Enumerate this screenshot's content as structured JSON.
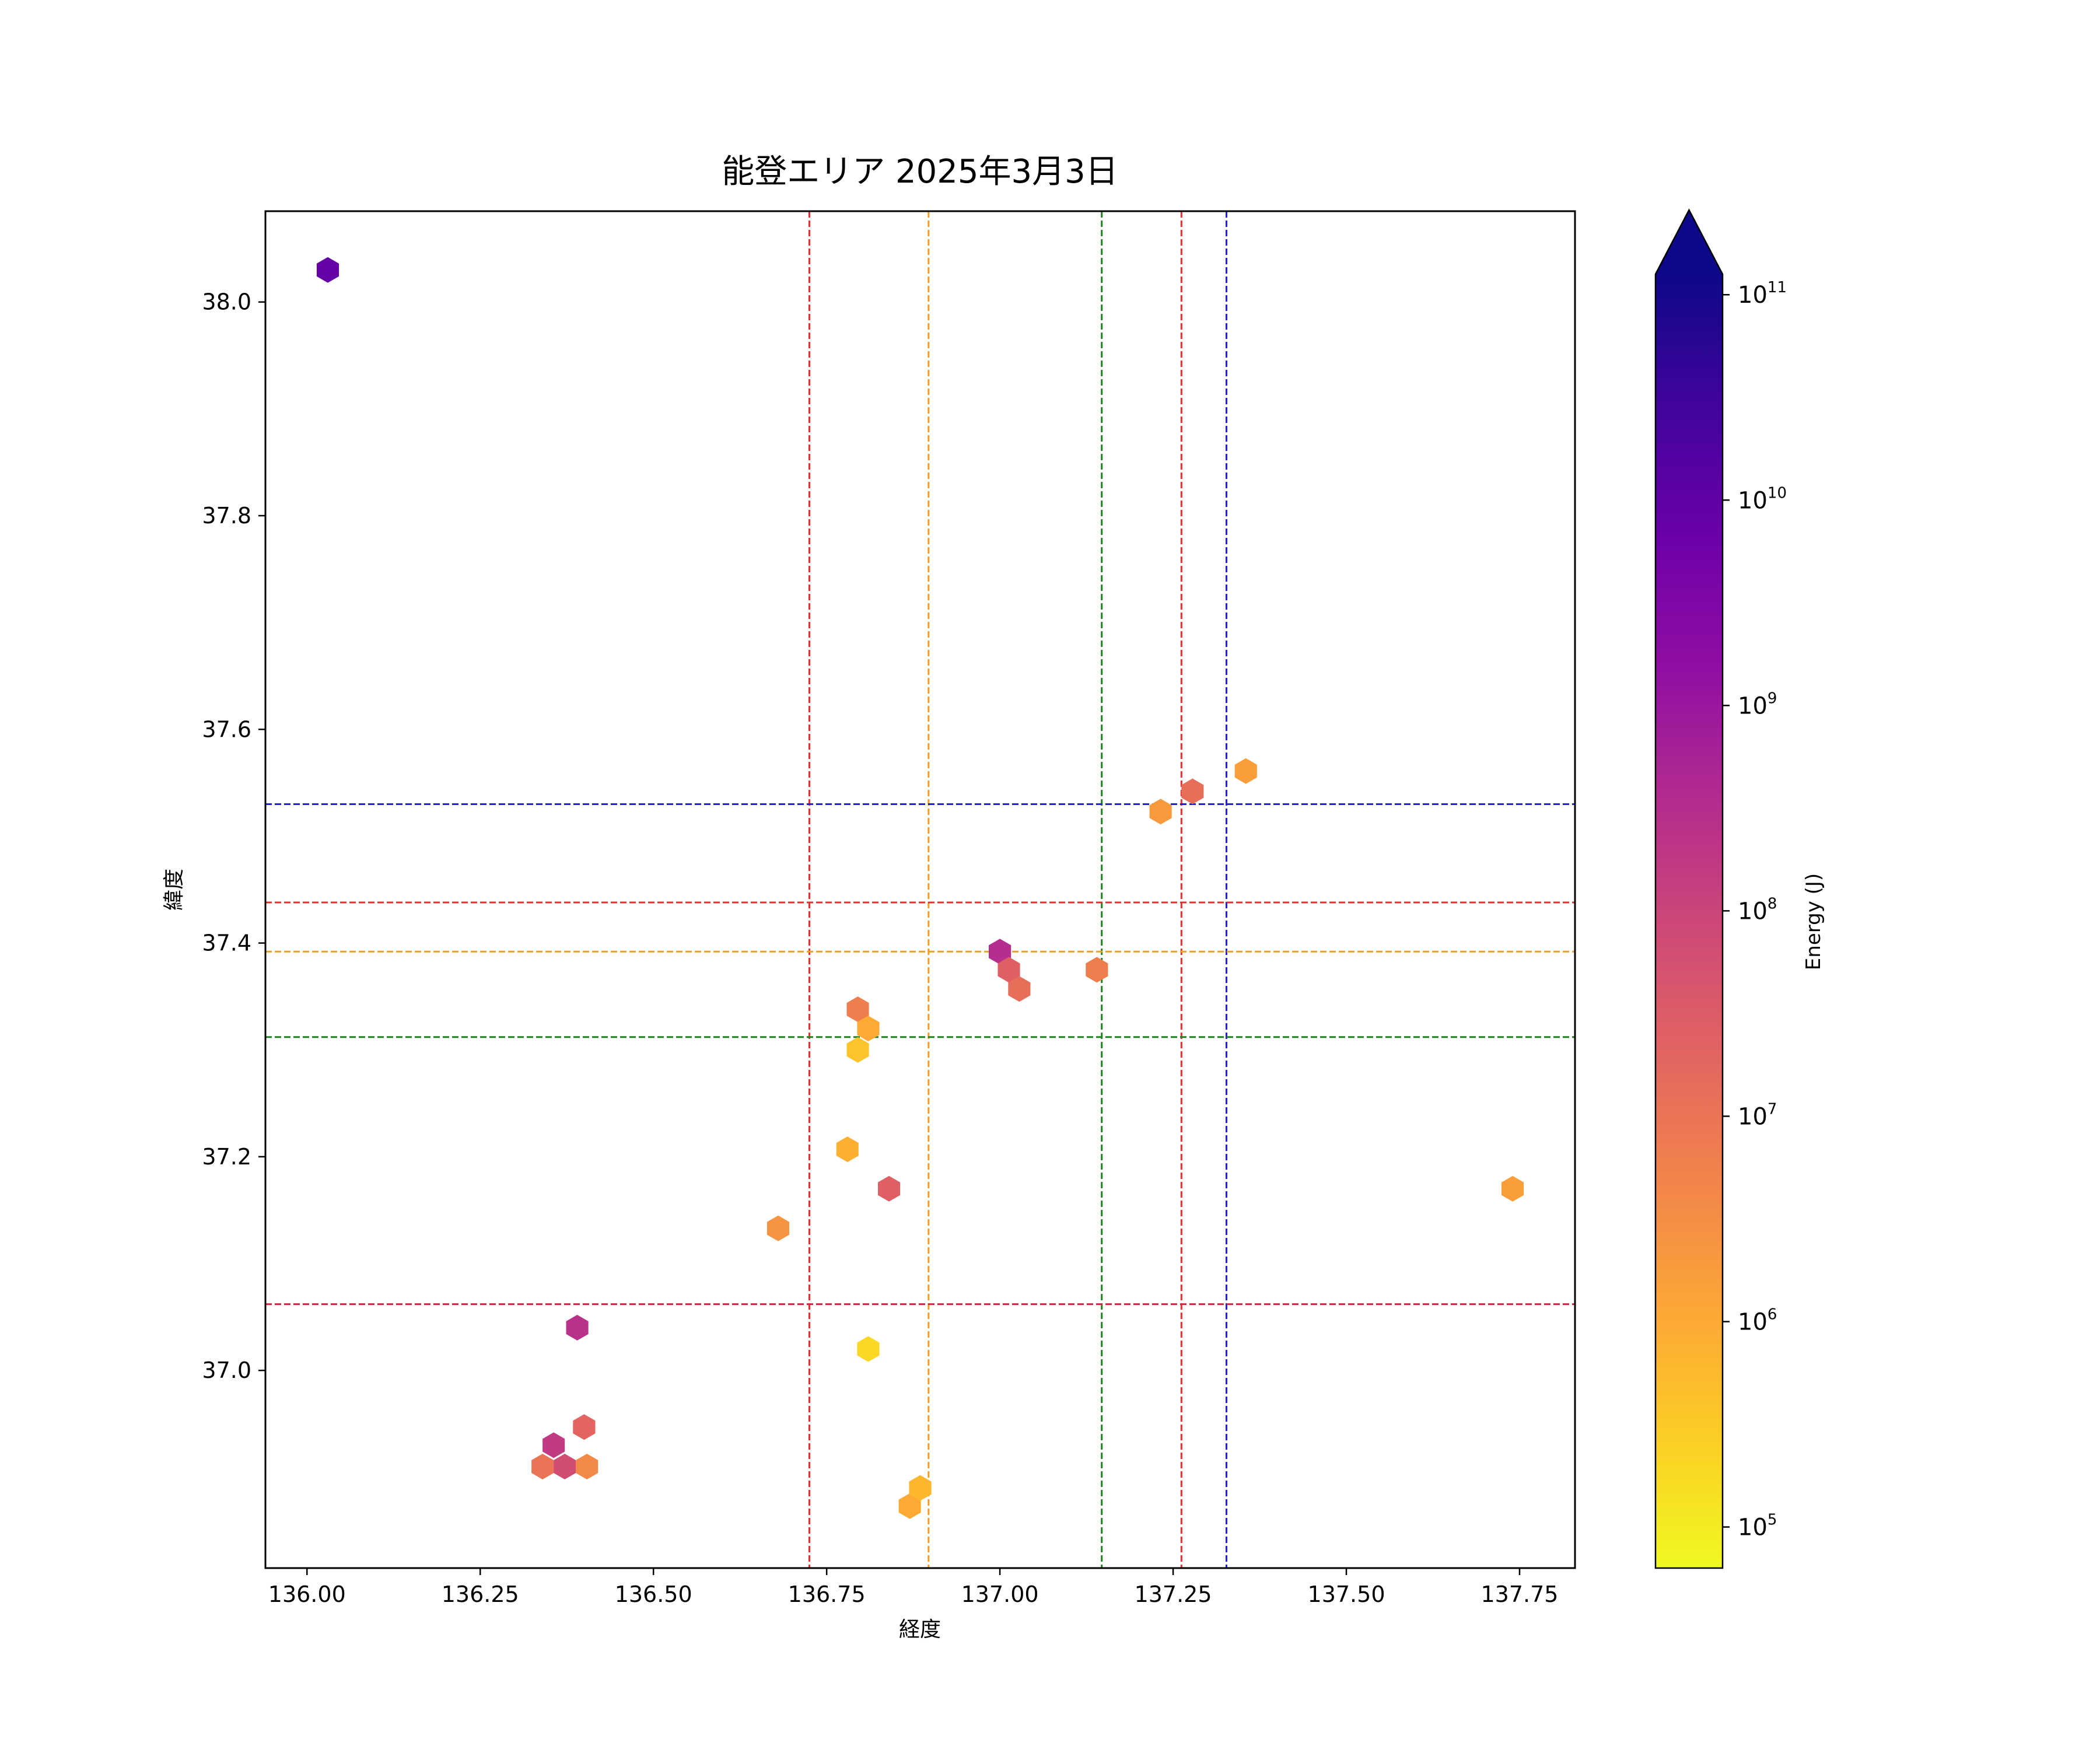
{
  "chart_data": {
    "type": "scatter",
    "marker": "hexagon",
    "title": "能登エリア 2025年3月3日",
    "xlabel": "経度",
    "ylabel": "緯度",
    "xlim": [
      135.94,
      137.83
    ],
    "ylim": [
      36.815,
      38.085
    ],
    "xticks": [
      136.0,
      136.25,
      136.5,
      136.75,
      137.0,
      137.25,
      137.5,
      137.75
    ],
    "xtick_labels": [
      "136.00",
      "136.25",
      "136.50",
      "136.75",
      "137.00",
      "137.25",
      "137.50",
      "137.75"
    ],
    "yticks": [
      37.0,
      37.2,
      37.4,
      37.6,
      37.8,
      38.0
    ],
    "ytick_labels": [
      "37.0",
      "37.2",
      "37.4",
      "37.6",
      "37.8",
      "38.0"
    ],
    "grid": false,
    "colorbar": {
      "label": "Energy (J)",
      "scale": "log",
      "colormap": "plasma_r",
      "range_log10": [
        4.8,
        11.1
      ],
      "extend": "max",
      "ticks": [
        {
          "log10": 5,
          "base": "10",
          "exp": "5"
        },
        {
          "log10": 6,
          "base": "10",
          "exp": "6"
        },
        {
          "log10": 7,
          "base": "10",
          "exp": "7"
        },
        {
          "log10": 8,
          "base": "10",
          "exp": "8"
        },
        {
          "log10": 9,
          "base": "10",
          "exp": "9"
        },
        {
          "log10": 10,
          "base": "10",
          "exp": "10"
        },
        {
          "log10": 11,
          "base": "10",
          "exp": "11"
        }
      ]
    },
    "reference_lines": {
      "vertical": [
        {
          "x": 136.725,
          "color": "#e03030"
        },
        {
          "x": 136.897,
          "color": "#f0a020"
        },
        {
          "x": 137.147,
          "color": "#208020"
        },
        {
          "x": 137.262,
          "color": "#e03030"
        },
        {
          "x": 137.327,
          "color": "#2020e0"
        }
      ],
      "horizontal": [
        {
          "y": 37.53,
          "color": "#2020e0"
        },
        {
          "y": 37.438,
          "color": "#e03030"
        },
        {
          "y": 37.392,
          "color": "#f0a020"
        },
        {
          "y": 37.312,
          "color": "#208020"
        },
        {
          "y": 37.062,
          "color": "#c03040"
        }
      ]
    },
    "points": [
      {
        "x": 136.03,
        "y": 38.03,
        "log_energy": 9.9
      },
      {
        "x": 136.39,
        "y": 37.04,
        "log_energy": 8.4
      },
      {
        "x": 136.4,
        "y": 36.947,
        "log_energy": 7.3
      },
      {
        "x": 136.356,
        "y": 36.93,
        "log_energy": 8.2
      },
      {
        "x": 136.34,
        "y": 36.91,
        "log_energy": 7.0
      },
      {
        "x": 136.372,
        "y": 36.91,
        "log_energy": 7.8
      },
      {
        "x": 136.404,
        "y": 36.91,
        "log_energy": 6.6
      },
      {
        "x": 136.68,
        "y": 37.133,
        "log_energy": 6.4
      },
      {
        "x": 136.78,
        "y": 37.207,
        "log_energy": 5.9
      },
      {
        "x": 136.795,
        "y": 37.338,
        "log_energy": 6.8
      },
      {
        "x": 136.81,
        "y": 37.32,
        "log_energy": 6.0
      },
      {
        "x": 136.795,
        "y": 37.3,
        "log_energy": 5.6
      },
      {
        "x": 136.84,
        "y": 37.17,
        "log_energy": 7.4
      },
      {
        "x": 136.81,
        "y": 37.02,
        "log_energy": 5.3
      },
      {
        "x": 136.87,
        "y": 36.873,
        "log_energy": 6.0
      },
      {
        "x": 136.885,
        "y": 36.89,
        "log_energy": 5.8
      },
      {
        "x": 137.0,
        "y": 37.392,
        "log_energy": 8.5
      },
      {
        "x": 137.013,
        "y": 37.375,
        "log_energy": 7.4
      },
      {
        "x": 137.028,
        "y": 37.357,
        "log_energy": 7.1
      },
      {
        "x": 137.14,
        "y": 37.375,
        "log_energy": 6.8
      },
      {
        "x": 137.232,
        "y": 37.523,
        "log_energy": 6.3
      },
      {
        "x": 137.278,
        "y": 37.542,
        "log_energy": 7.1
      },
      {
        "x": 137.355,
        "y": 37.561,
        "log_energy": 6.2
      },
      {
        "x": 137.74,
        "y": 37.17,
        "log_energy": 6.2
      }
    ]
  }
}
